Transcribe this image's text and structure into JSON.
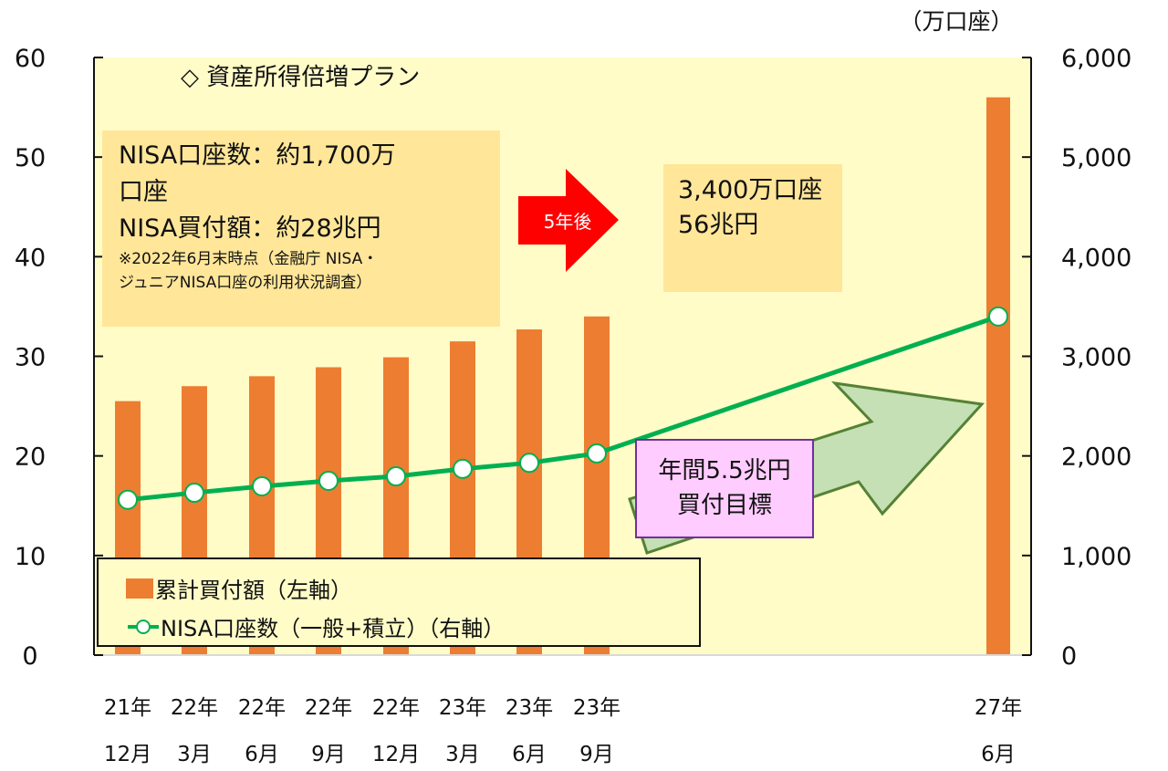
{
  "chart_data": {
    "type": "bar+line",
    "title": "資産所得倍増プラン",
    "title_marker": "◇",
    "categories": [
      "21年 12月",
      "22年 3月",
      "22年 6月",
      "22年 9月",
      "22年 12月",
      "23年 3月",
      "23年 6月",
      "23年 9月",
      "27年 6月"
    ],
    "category_lines": [
      [
        "21年",
        "12月"
      ],
      [
        "22年",
        "3月"
      ],
      [
        "22年",
        "6月"
      ],
      [
        "22年",
        "9月"
      ],
      [
        "22年",
        "12月"
      ],
      [
        "23年",
        "3月"
      ],
      [
        "23年",
        "6月"
      ],
      [
        "23年",
        "9月"
      ],
      [
        "27年",
        "6月"
      ]
    ],
    "series": [
      {
        "name": "累計買付額（左軸）",
        "type": "bar",
        "axis": "left",
        "color": "#ED7D31",
        "values": [
          25.5,
          27.0,
          28.0,
          28.9,
          29.9,
          31.5,
          32.7,
          34.0,
          56.0
        ]
      },
      {
        "name": "NISA口座数（一般+積立）（右軸）",
        "type": "line",
        "axis": "right",
        "color": "#00B050",
        "values": [
          1560,
          1630,
          1695,
          1750,
          1795,
          1870,
          1930,
          2025,
          3400
        ]
      }
    ],
    "left_axis": {
      "ylim": [
        0,
        60
      ],
      "ticks": [
        "0",
        "10",
        "20",
        "30",
        "40",
        "50",
        "60"
      ]
    },
    "right_axis": {
      "ylim": [
        0,
        6000
      ],
      "ticks": [
        "0",
        "1,000",
        "2,000",
        "3,000",
        "4,000",
        "5,000",
        "6,000"
      ],
      "unit": "（万口座）"
    },
    "legend": {
      "position": "inside-bottom-left",
      "entries": [
        "累計買付額（左軸）",
        "NISA口座数（一般+積立）（右軸）"
      ]
    },
    "annotations": {
      "current_box": {
        "lines": [
          "NISA口座数：約1,700万",
          "口座",
          "NISA買付額：約28兆円"
        ],
        "note_lines": [
          "※2022年6月末時点（金融庁 NISA・",
          "ジュニアNISA口座の利用状況調査）"
        ]
      },
      "arrow_label": "5年後",
      "target_box": {
        "lines": [
          "3,400万口座",
          "56兆円"
        ]
      },
      "goal_box": {
        "lines": [
          "年間5.5兆円",
          "買付目標"
        ]
      }
    },
    "colors": {
      "plot_bg": "#FFFCC8",
      "box_bg": "#FFE699",
      "arrow_red": "#FF0000",
      "goal_bg": "#FFCCFF",
      "goal_border": "#7030A0",
      "green_arrow_fill": "#C5E0B4",
      "green_arrow_stroke": "#548235"
    }
  }
}
